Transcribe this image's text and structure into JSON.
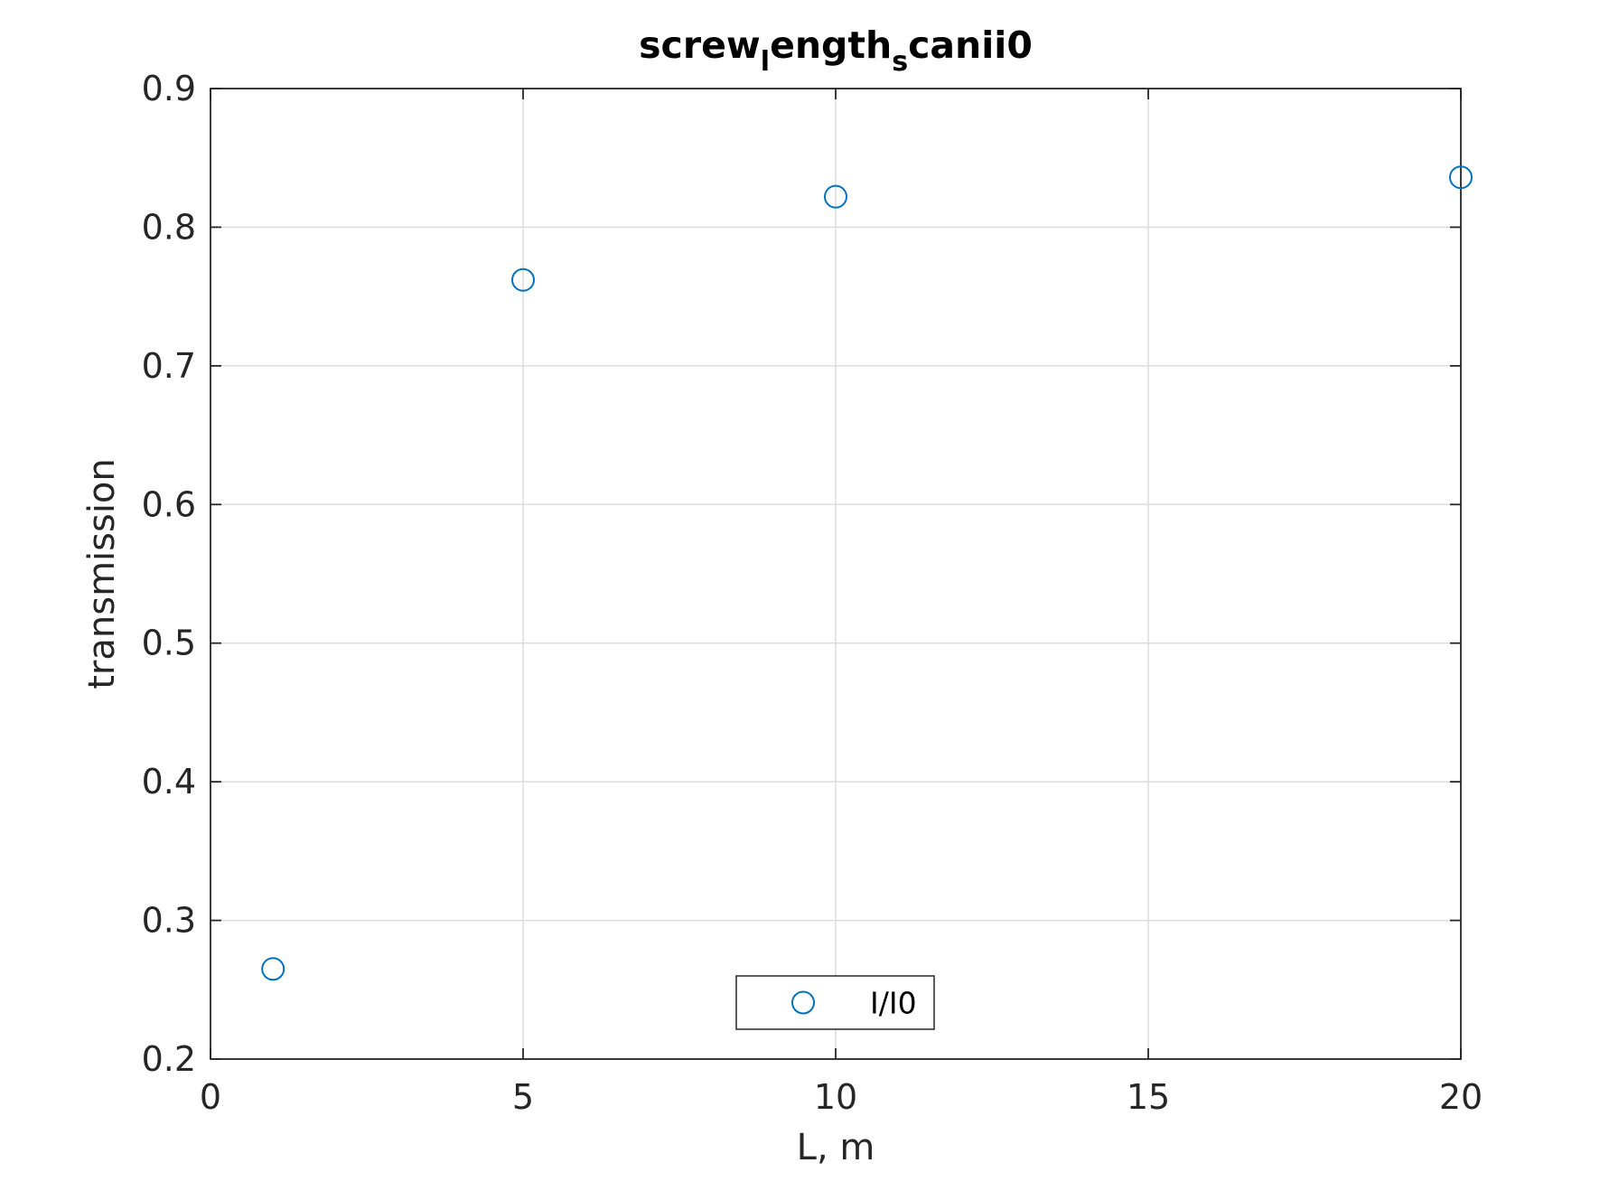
{
  "chart_data": {
    "type": "scatter",
    "title": {
      "parts": [
        {
          "text": "screw",
          "style": "normal"
        },
        {
          "text": "l",
          "style": "sub"
        },
        {
          "text": "ength",
          "style": "normal"
        },
        {
          "text": "s",
          "style": "sub"
        },
        {
          "text": "canii0",
          "style": "normal"
        }
      ]
    },
    "xlabel": "L, m",
    "ylabel": "transmission",
    "xlim": [
      0,
      20
    ],
    "ylim": [
      0.2,
      0.9
    ],
    "xticks": [
      0,
      5,
      10,
      15,
      20
    ],
    "xtick_labels": [
      "0",
      "5",
      "10",
      "15",
      "20"
    ],
    "yticks": [
      0.2,
      0.3,
      0.4,
      0.5,
      0.6,
      0.7,
      0.8,
      0.9
    ],
    "ytick_labels": [
      "0.2",
      "0.3",
      "0.4",
      "0.5",
      "0.6",
      "0.7",
      "0.8",
      "0.9"
    ],
    "grid": true,
    "legend_position": "bottom-center",
    "series": [
      {
        "name": "I/I0",
        "marker": "open-circle",
        "color": "#0072BD",
        "x": [
          1,
          5,
          10,
          20
        ],
        "y": [
          0.265,
          0.762,
          0.822,
          0.836
        ]
      }
    ]
  },
  "colors": {
    "axis": "#262626",
    "grid": "#dcdcdc",
    "background": "#ffffff"
  }
}
